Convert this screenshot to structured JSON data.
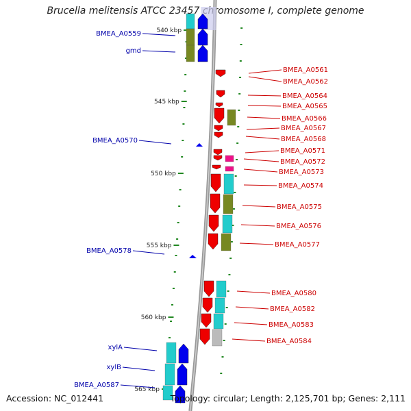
{
  "title": "Brucella melitensis ATCC 23457 chromosome I, complete genome",
  "footer": {
    "accession": "Accession: NC_012441",
    "topology": "Topology: circular; Length: 2,125,701 bp; Genes: 2,111"
  },
  "colors": {
    "forward_gene": "#0000ee",
    "reverse_gene": "#ee0000",
    "pink_gene": "#ee1188",
    "cyan_block": "#22cccc",
    "olive_block": "#778822",
    "grey_block": "#bbbbbb",
    "left_label": "#0000aa",
    "right_label": "#cc0000",
    "tick": "#228822"
  },
  "ticks": [
    "540 kbp",
    "545 kbp",
    "550 kbp",
    "555 kbp",
    "560 kbp",
    "565 kbp"
  ],
  "left_labels": [
    "BMEA_A0559",
    "gmd",
    "BMEA_A0570",
    "BMEA_A0578",
    "xylA",
    "xylB",
    "BMEA_A0587"
  ],
  "right_labels": [
    "BMEA_A0561",
    "BMEA_A0562",
    "BMEA_A0564",
    "BMEA_A0565",
    "BMEA_A0566",
    "BMEA_A0567",
    "BMEA_A0568",
    "BMEA_A0571",
    "BMEA_A0572",
    "BMEA_A0573",
    "BMEA_A0574",
    "BMEA_A0575",
    "BMEA_A0576",
    "BMEA_A0577",
    "BMEA_A0580",
    "BMEA_A0582",
    "BMEA_A0583",
    "BMEA_A0584"
  ]
}
